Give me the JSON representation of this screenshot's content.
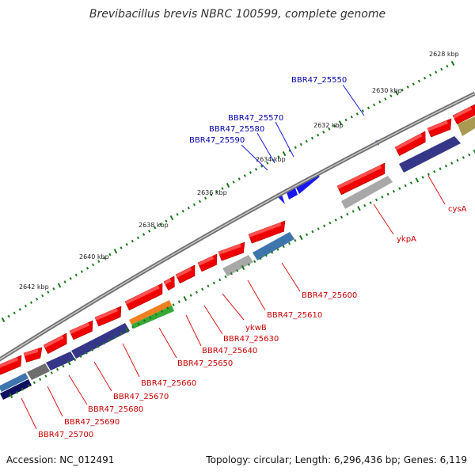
{
  "title": "Brevibacillus brevis NBRC 100599, complete genome",
  "footer": {
    "accession": "Accession: NC_012491",
    "summary": "Topology: circular; Length: 6,296,436 bp; Genes: 6,119"
  },
  "colors": {
    "backbone": "#8a8a8a",
    "forward_gene": "#e00000",
    "reverse_gene": "#2020ff",
    "label_forward": "#cc0000",
    "label_reverse": "#0000aa",
    "ruler_dot": "#1a7a1a",
    "cds_purple": "#3a3a8c",
    "cds_gray": "#b4b4b4",
    "cds_blue": "#4a86bf",
    "cds_orange": "#f08020",
    "cds_green": "#40b040",
    "cds_olive": "#b8a860",
    "cds_darkgray": "#707070",
    "cds_navy": "#101060"
  },
  "ruler_labels": [
    "2628 kbp",
    "2630 kbp",
    "2632 kbp",
    "2634 kbp",
    "2636 kbp",
    "2638 kbp",
    "2640 kbp",
    "2642 kbp"
  ],
  "reverse_genes": [
    "BBR47_25550",
    "BBR47_25570",
    "BBR47_25580",
    "BBR47_25590"
  ],
  "forward_genes": [
    "cysA",
    "ykpA",
    "BBR47_25600",
    "BBR47_25610",
    "ykwB",
    "BBR47_25630",
    "BBR47_25640",
    "BBR47_25650",
    "BBR47_25660",
    "BBR47_25670",
    "BBR47_25680",
    "BBR47_25690",
    "BBR47_25700"
  ]
}
